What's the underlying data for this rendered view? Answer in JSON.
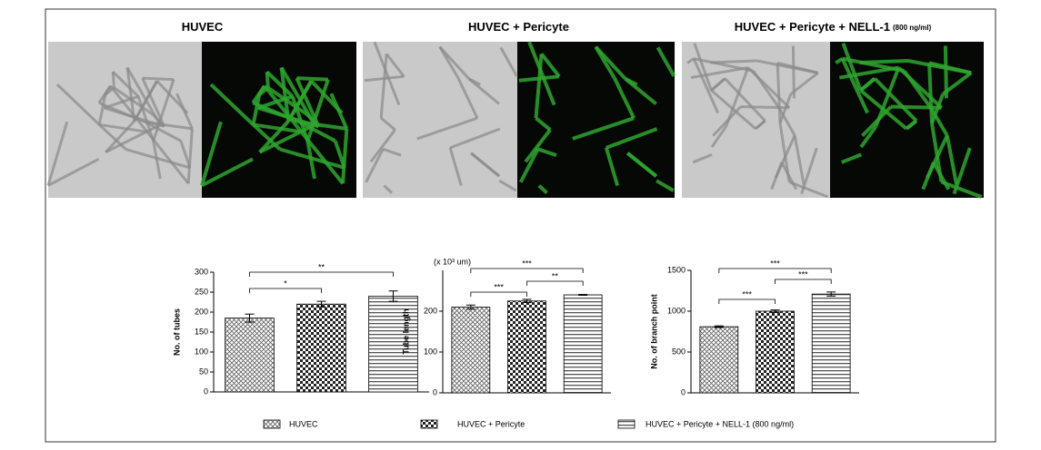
{
  "panels": [
    {
      "title": "HUVEC"
    },
    {
      "title": "HUVEC + Pericyte"
    },
    {
      "title": "HUVEC + Pericyte + NELL-1",
      "note": "(800 ng/ml)"
    }
  ],
  "chart_data": [
    {
      "type": "bar",
      "ylabel": "No. of tubes",
      "categories": [
        null,
        null,
        null
      ],
      "values": [
        185,
        220,
        240
      ],
      "errors": [
        10,
        7,
        13
      ],
      "ylim": [
        0,
        300
      ],
      "yticks": [
        0,
        50,
        100,
        150,
        200,
        250,
        300
      ],
      "significance": [
        "*",
        "**"
      ]
    },
    {
      "type": "bar",
      "ylabel": "Tube length",
      "unit": "(x 10³ um)",
      "categories": [
        null,
        null,
        null
      ],
      "values": [
        210,
        225,
        240
      ],
      "errors": [
        5,
        4,
        1
      ],
      "ylim": [
        0,
        300
      ],
      "yticks": [
        0,
        100,
        200
      ],
      "significance": [
        "***",
        "**",
        "***"
      ]
    },
    {
      "type": "bar",
      "ylabel": "No. of branch point",
      "categories": [
        null,
        null,
        null
      ],
      "values": [
        810,
        1000,
        1210
      ],
      "errors": [
        10,
        15,
        25
      ],
      "ylim": [
        0,
        1500
      ],
      "yticks": [
        0,
        500,
        1000,
        1500
      ],
      "significance": [
        "***",
        "***",
        "***"
      ]
    }
  ],
  "legend": [
    "HUVEC",
    "HUVEC + Pericyte",
    "HUVEC + Pericyte + NELL-1 (800 ng/ml)"
  ]
}
